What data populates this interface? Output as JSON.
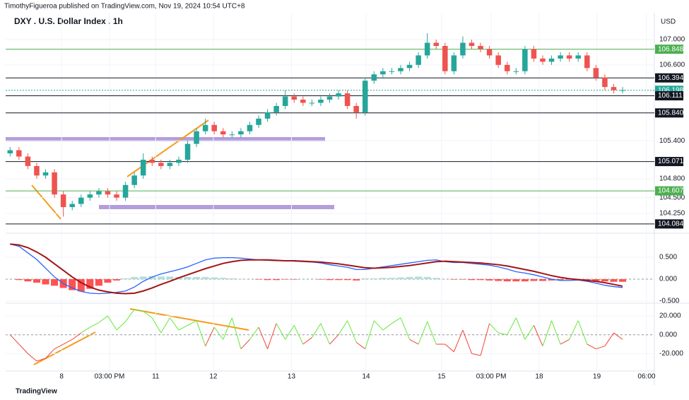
{
  "header": "TimothyFigueroa published on TradingView.com, Nov 19, 2024 10:54 UTC+8",
  "footer": "TradingView",
  "chart_data": [
    {
      "type": "candlestick",
      "title": "DXY . U.S. Dollar Index . 1h",
      "currency": "USD",
      "up_color": "#26a69a",
      "down_color": "#ef5350",
      "xlim": [
        0,
        73
      ],
      "xticks": [
        {
          "value": 6.3,
          "label": "8"
        },
        {
          "value": 11.7,
          "label": "03:00 PM"
        },
        {
          "value": 16.9,
          "label": "11"
        },
        {
          "value": 23.4,
          "label": "12"
        },
        {
          "value": 32.2,
          "label": "13"
        },
        {
          "value": 40.6,
          "label": "14"
        },
        {
          "value": 49.1,
          "label": "15"
        },
        {
          "value": 54.7,
          "label": "03:00 PM"
        },
        {
          "value": 60.1,
          "label": "18"
        },
        {
          "value": 66.6,
          "label": "19"
        },
        {
          "value": 72.2,
          "label": "06:00"
        }
      ],
      "ylim": [
        103.993,
        107.347
      ],
      "yticks": [
        {
          "value": 107,
          "label": "107.000"
        },
        {
          "value": 106.6,
          "label": "106.600"
        },
        {
          "value": 105.4,
          "label": "105.400"
        },
        {
          "value": 104.8,
          "label": "104.800"
        },
        {
          "value": 104.5,
          "label": "104.500"
        },
        {
          "value": 104.25,
          "label": "104.250"
        }
      ],
      "levels": [
        {
          "value": 106.848,
          "color": "#4caf50"
        },
        {
          "value": 106.394,
          "color": "#131722"
        },
        {
          "value": 106.198,
          "color": "#26a69a"
        },
        {
          "value": 106.111,
          "color": "#131722"
        },
        {
          "value": 105.84,
          "label": "105.840",
          "color": "#131722"
        },
        {
          "value": 105.071,
          "color": "#131722"
        },
        {
          "value": 104.607,
          "color": "#4caf50"
        },
        {
          "value": 104.084,
          "color": "#131722"
        }
      ],
      "open": [
        105.2,
        105.25,
        105.15,
        105.0,
        104.85,
        104.9,
        104.55,
        104.35,
        104.4,
        104.5,
        104.55,
        104.6,
        104.55,
        104.5,
        104.7,
        104.85,
        105.1,
        105.05,
        105.0,
        105.05,
        105.1,
        105.35,
        105.55,
        105.65,
        105.55,
        105.5,
        105.5,
        105.55,
        105.65,
        105.75,
        105.85,
        105.95,
        106.1,
        106.05,
        106.0,
        106.0,
        106.05,
        106.1,
        106.15,
        105.95,
        105.85,
        106.35,
        106.45,
        106.5,
        106.5,
        106.55,
        106.6,
        106.75,
        106.95,
        106.9,
        106.5,
        106.75,
        106.95,
        106.9,
        106.85,
        106.75,
        106.6,
        106.5,
        106.5,
        106.85,
        106.7,
        106.65,
        106.7,
        106.75,
        106.7,
        106.75,
        106.55,
        106.4,
        106.25,
        106.2
      ],
      "high": [
        105.3,
        105.3,
        105.2,
        105.05,
        104.95,
        104.95,
        104.6,
        104.45,
        104.55,
        104.6,
        104.65,
        104.65,
        104.6,
        104.75,
        104.9,
        105.2,
        105.15,
        105.1,
        105.1,
        105.15,
        105.4,
        105.6,
        105.75,
        105.7,
        105.6,
        105.55,
        105.6,
        105.7,
        105.8,
        105.9,
        106.0,
        106.2,
        106.15,
        106.1,
        106.05,
        106.1,
        106.15,
        106.2,
        106.2,
        106.0,
        106.4,
        106.5,
        106.55,
        106.55,
        106.6,
        106.65,
        106.8,
        107.1,
        107.0,
        106.95,
        106.8,
        107.05,
        107.0,
        106.95,
        106.9,
        106.8,
        106.65,
        106.55,
        106.9,
        106.9,
        106.75,
        106.75,
        106.8,
        106.8,
        106.8,
        106.8,
        106.6,
        106.45,
        106.3,
        106.25
      ],
      "low": [
        105.15,
        105.1,
        104.95,
        104.8,
        104.8,
        104.5,
        104.2,
        104.3,
        104.35,
        104.45,
        104.5,
        104.5,
        104.45,
        104.45,
        104.65,
        104.8,
        105.0,
        104.95,
        104.95,
        105.0,
        105.05,
        105.3,
        105.5,
        105.5,
        105.45,
        105.45,
        105.45,
        105.5,
        105.6,
        105.7,
        105.8,
        105.9,
        106.0,
        105.95,
        105.95,
        105.95,
        106.0,
        106.05,
        105.9,
        105.75,
        105.8,
        106.3,
        106.4,
        106.45,
        106.45,
        106.5,
        106.55,
        106.7,
        106.85,
        106.45,
        106.45,
        106.7,
        106.85,
        106.8,
        106.7,
        106.55,
        106.45,
        106.45,
        106.45,
        106.65,
        106.6,
        106.6,
        106.65,
        106.65,
        106.65,
        106.5,
        106.35,
        106.2,
        106.15,
        106.15
      ],
      "close": [
        105.25,
        105.15,
        105.0,
        104.85,
        104.9,
        104.55,
        104.35,
        104.4,
        104.5,
        104.55,
        104.6,
        104.55,
        104.5,
        104.7,
        104.85,
        105.1,
        105.05,
        105.0,
        105.05,
        105.1,
        105.35,
        105.55,
        105.65,
        105.55,
        105.5,
        105.5,
        105.55,
        105.65,
        105.75,
        105.85,
        105.95,
        106.1,
        106.05,
        106.0,
        106.0,
        106.05,
        106.1,
        106.15,
        105.95,
        105.85,
        106.35,
        106.45,
        106.5,
        106.5,
        106.55,
        106.6,
        106.75,
        106.95,
        106.9,
        106.5,
        106.75,
        106.95,
        106.9,
        106.85,
        106.75,
        106.6,
        106.5,
        106.5,
        106.85,
        106.7,
        106.65,
        106.7,
        106.75,
        106.7,
        106.75,
        106.55,
        106.4,
        106.25,
        106.2,
        106.2
      ]
    },
    {
      "type": "macd",
      "ylim": [
        -0.532,
        0.968
      ],
      "yticks": [
        {
          "value": 0.5,
          "label": "0.500"
        },
        {
          "value": 0,
          "label": "0.000"
        },
        {
          "value": -0.5,
          "label": "-0.500"
        }
      ],
      "up_color": "#b2dfdb",
      "down_color": "#ff5252",
      "histogram": [
        0,
        -0.02,
        -0.05,
        -0.08,
        -0.12,
        -0.15,
        -0.2,
        -0.25,
        -0.28,
        -0.22,
        -0.15,
        -0.08,
        -0.03,
        0.02,
        0.05,
        0.06,
        0.07,
        0.06,
        0.06,
        0.05,
        0.05,
        0.05,
        0.05,
        0.04,
        0.03,
        0.02,
        0.01,
        0,
        -0.01,
        -0.02,
        -0.02,
        -0.01,
        -0.01,
        0,
        0,
        -0.01,
        -0.02,
        -0.02,
        -0.02,
        -0.03,
        0.02,
        0.02,
        0.03,
        0.03,
        0.04,
        0.05,
        0.06,
        0.05,
        0.03,
        0,
        -0.01,
        -0.01,
        -0.02,
        -0.02,
        -0.03,
        -0.04,
        -0.05,
        -0.05,
        -0.05,
        -0.04,
        -0.04,
        -0.03,
        -0.02,
        -0.01,
        -0.01,
        -0.02,
        -0.04,
        -0.05,
        -0.06,
        -0.06
      ],
      "series": [
        {
          "color": "#2962ff",
          "values": [
            0.8,
            0.75,
            0.6,
            0.45,
            0.25,
            0.05,
            -0.1,
            -0.2,
            -0.28,
            -0.32,
            -0.33,
            -0.32,
            -0.3,
            -0.27,
            -0.18,
            -0.05,
            0.05,
            0.12,
            0.17,
            0.22,
            0.28,
            0.36,
            0.44,
            0.48,
            0.49,
            0.49,
            0.48,
            0.46,
            0.44,
            0.43,
            0.42,
            0.42,
            0.41,
            0.4,
            0.39,
            0.37,
            0.33,
            0.3,
            0.27,
            0.22,
            0.22,
            0.25,
            0.28,
            0.31,
            0.34,
            0.37,
            0.4,
            0.43,
            0.44,
            0.4,
            0.38,
            0.38,
            0.36,
            0.34,
            0.32,
            0.28,
            0.23,
            0.17,
            0.14,
            0.1,
            0.05,
            0,
            -0.03,
            -0.03,
            -0.02,
            -0.05,
            -0.09,
            -0.14,
            -0.17,
            -0.19
          ]
        },
        {
          "color": "#a31515",
          "values": [
            0.8,
            0.78,
            0.72,
            0.62,
            0.5,
            0.35,
            0.2,
            0.05,
            -0.08,
            -0.18,
            -0.25,
            -0.29,
            -0.32,
            -0.33,
            -0.32,
            -0.27,
            -0.2,
            -0.12,
            -0.05,
            0.03,
            0.1,
            0.17,
            0.24,
            0.3,
            0.36,
            0.4,
            0.43,
            0.44,
            0.44,
            0.44,
            0.43,
            0.42,
            0.42,
            0.41,
            0.4,
            0.39,
            0.37,
            0.35,
            0.32,
            0.29,
            0.26,
            0.25,
            0.26,
            0.27,
            0.29,
            0.31,
            0.34,
            0.37,
            0.4,
            0.41,
            0.4,
            0.39,
            0.38,
            0.37,
            0.35,
            0.33,
            0.3,
            0.26,
            0.22,
            0.18,
            0.13,
            0.08,
            0.04,
            0.01,
            -0.01,
            -0.03,
            -0.05,
            -0.08,
            -0.12,
            -0.16
          ]
        }
      ]
    },
    {
      "type": "oscillator",
      "ylim": [
        -38.5,
        32.8
      ],
      "yticks": [
        {
          "value": 20,
          "label": "20.000"
        },
        {
          "value": 0,
          "label": "0.000"
        },
        {
          "value": -20,
          "label": "-20.000"
        }
      ],
      "up_color": "#66e83a",
      "down_color": "#f44336",
      "values": [
        0,
        -10,
        -20,
        -28,
        -25,
        -15,
        -10,
        -5,
        2,
        8,
        13,
        20,
        5,
        14,
        27,
        25,
        18,
        2,
        18,
        5,
        10,
        15,
        -12,
        8,
        -5,
        18,
        -15,
        -5,
        8,
        -15,
        12,
        -5,
        10,
        -10,
        -3,
        12,
        -10,
        0,
        15,
        -8,
        -15,
        15,
        5,
        12,
        18,
        -5,
        -10,
        14,
        -10,
        -10,
        -18,
        5,
        -20,
        -22,
        12,
        2,
        0,
        18,
        -5,
        10,
        -12,
        15,
        -10,
        -5,
        15,
        -10,
        -15,
        -12,
        2,
        -5
      ]
    }
  ]
}
